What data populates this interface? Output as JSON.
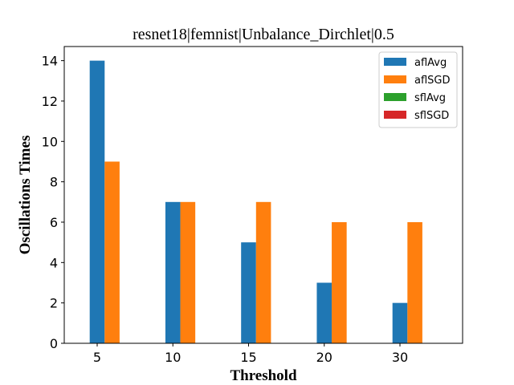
{
  "chart_data": {
    "type": "bar",
    "title": "resnet18|femnist|Unbalance_Dirchlet|0.5",
    "xlabel": "Threshold",
    "ylabel": "Oscillations Times",
    "categories": [
      "5",
      "10",
      "15",
      "20",
      "30"
    ],
    "series": [
      {
        "name": "aflAvg",
        "color": "#1f77b4",
        "values": [
          14,
          7,
          5,
          3,
          2
        ]
      },
      {
        "name": "aflSGD",
        "color": "#ff7f0e",
        "values": [
          9,
          7,
          7,
          6,
          6
        ]
      },
      {
        "name": "sflAvg",
        "color": "#2ca02c",
        "values": [
          0,
          0,
          0,
          0,
          0
        ]
      },
      {
        "name": "sflSGD",
        "color": "#d62728",
        "values": [
          0,
          0,
          0,
          0,
          0
        ]
      }
    ],
    "ylim": [
      0,
      14.7
    ],
    "yticks": [
      0,
      2,
      4,
      6,
      8,
      10,
      12,
      14
    ],
    "grid": false,
    "legend": "top-right"
  }
}
